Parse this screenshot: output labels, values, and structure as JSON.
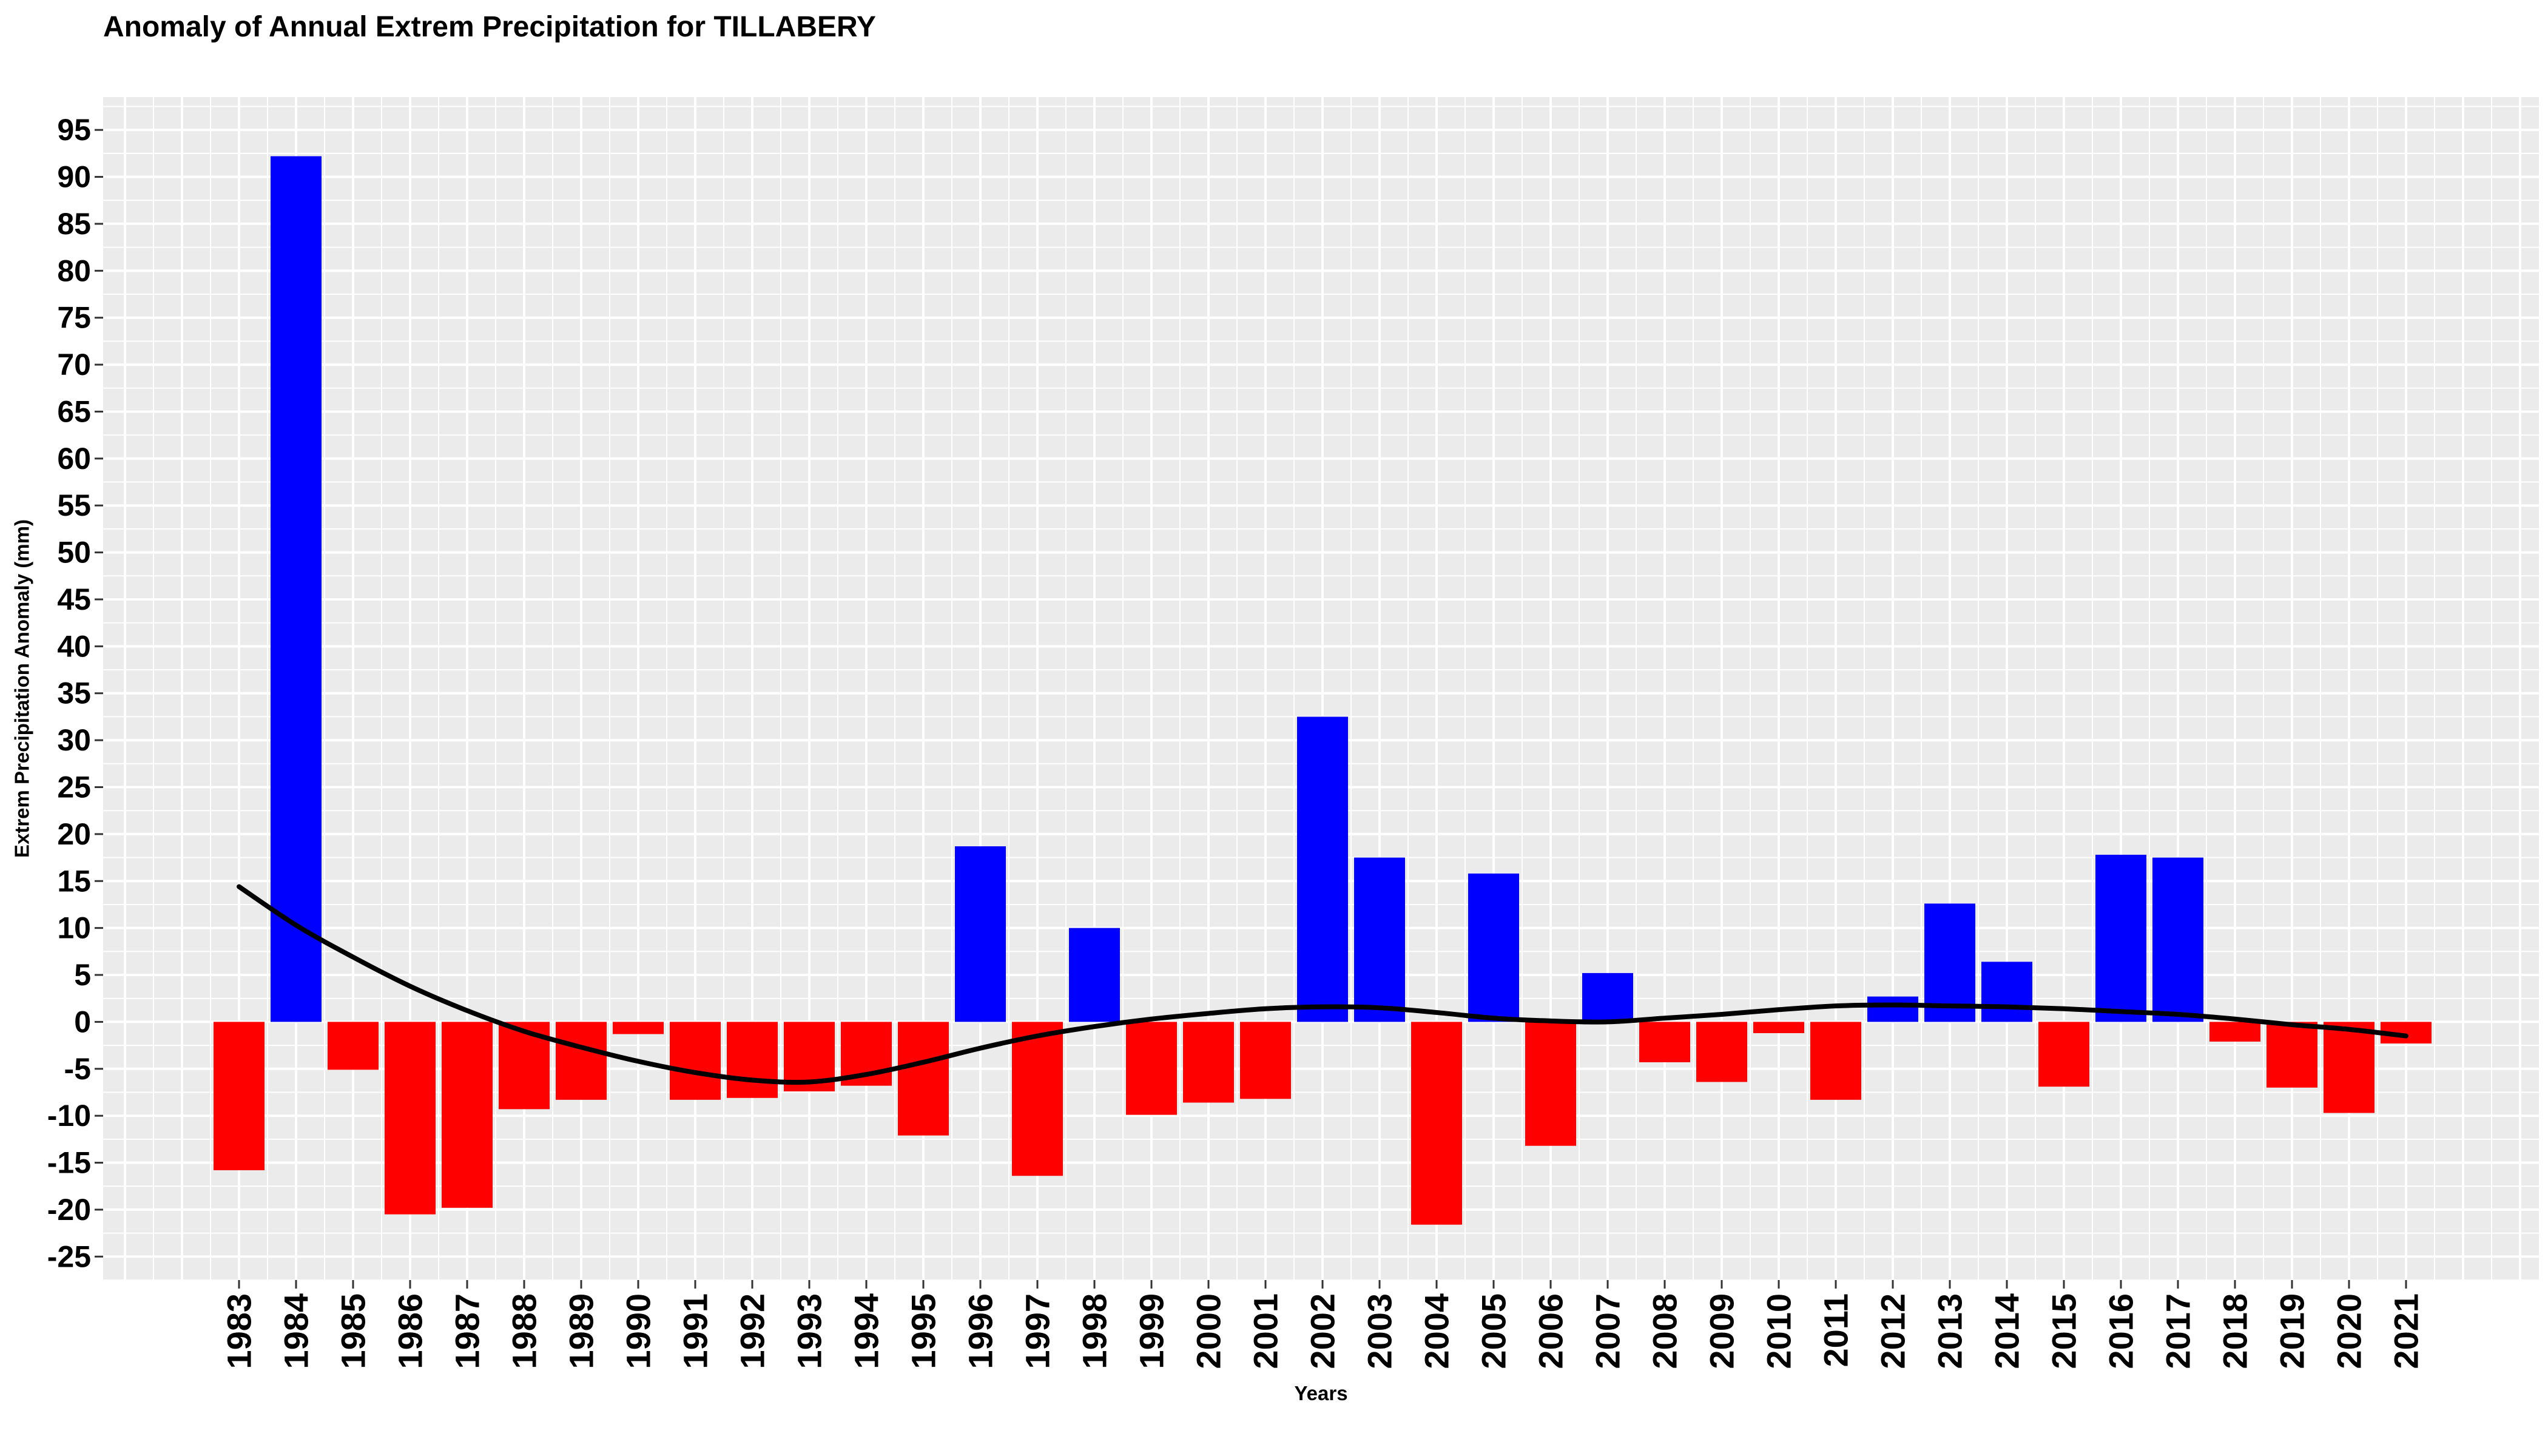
{
  "chart_data": {
    "type": "bar",
    "title": "Anomaly of Annual Extrem Precipitation for  TILLABERY",
    "xlabel": "Years",
    "ylabel": "Extrem Precipitation Anomaly (mm)",
    "categories": [
      "1983",
      "1984",
      "1985",
      "1986",
      "1987",
      "1988",
      "1989",
      "1990",
      "1991",
      "1992",
      "1993",
      "1994",
      "1995",
      "1996",
      "1997",
      "1998",
      "1999",
      "2000",
      "2001",
      "2002",
      "2003",
      "2004",
      "2005",
      "2006",
      "2007",
      "2008",
      "2009",
      "2010",
      "2011",
      "2012",
      "2013",
      "2014",
      "2015",
      "2016",
      "2017",
      "2018",
      "2019",
      "2020",
      "2021"
    ],
    "values": [
      -15.8,
      92.2,
      -5.1,
      -20.5,
      -19.8,
      -9.3,
      -8.3,
      -1.3,
      -8.3,
      -8.1,
      -7.4,
      -6.8,
      -12.1,
      18.7,
      -16.4,
      10.0,
      -9.9,
      -8.6,
      -8.2,
      32.5,
      17.5,
      -21.6,
      15.8,
      -13.2,
      5.2,
      -4.3,
      -6.4,
      -1.2,
      -8.3,
      2.7,
      12.6,
      6.4,
      -6.9,
      17.8,
      17.5,
      -2.1,
      -7.0,
      -9.7,
      -2.3
    ],
    "positive_color": "#0000FF",
    "negative_color": "#FF0000",
    "trend": {
      "color": "#000000",
      "values": [
        14.4,
        10.3,
        6.9,
        3.8,
        1.2,
        -1.0,
        -2.7,
        -4.2,
        -5.4,
        -6.2,
        -6.4,
        -5.6,
        -4.3,
        -2.8,
        -1.5,
        -0.5,
        0.3,
        0.9,
        1.4,
        1.6,
        1.5,
        1.0,
        0.4,
        0.1,
        0.0,
        0.4,
        0.8,
        1.3,
        1.7,
        1.8,
        1.7,
        1.6,
        1.4,
        1.1,
        0.8,
        0.3,
        -0.3,
        -0.8,
        -1.5
      ]
    },
    "yticks": [
      -25,
      -20,
      -15,
      -10,
      -5,
      0,
      5,
      10,
      15,
      20,
      25,
      30,
      35,
      40,
      45,
      50,
      55,
      60,
      65,
      70,
      75,
      80,
      85,
      90,
      95
    ],
    "ylim": [
      -27.5,
      98.5
    ],
    "grid": true,
    "panel_background": "#EBEBEB",
    "grid_color": "#FFFFFF"
  }
}
